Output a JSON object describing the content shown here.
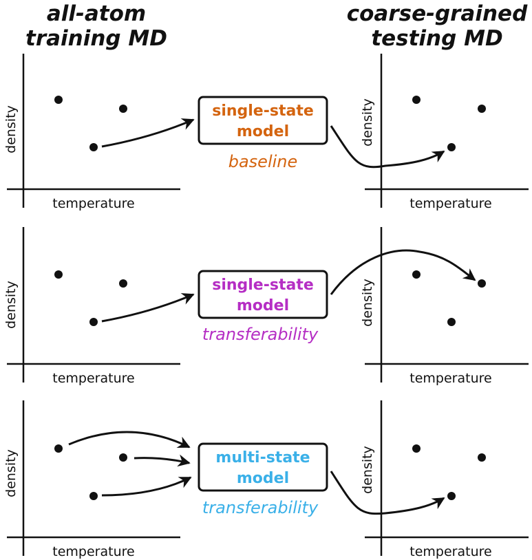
{
  "headings": {
    "left": [
      "all-atom",
      "training MD"
    ],
    "right": [
      "coarse-grained",
      "testing MD"
    ]
  },
  "axis_labels": {
    "x": "temperature",
    "y": "density"
  },
  "rows": [
    {
      "model_lines": [
        "single-state",
        "model"
      ],
      "caption": "baseline",
      "color": "#d4640f"
    },
    {
      "model_lines": [
        "single-state",
        "model"
      ],
      "caption": "transferability",
      "color": "#b52ec4"
    },
    {
      "model_lines": [
        "multi-state",
        "model"
      ],
      "caption": "transferability",
      "color": "#3ab0e8"
    }
  ]
}
